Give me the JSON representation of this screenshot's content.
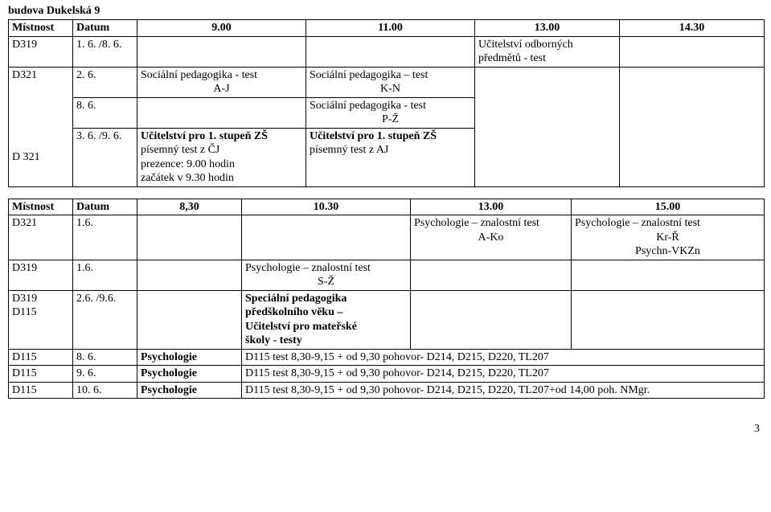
{
  "building": "budova Dukelská 9",
  "table1": {
    "header": {
      "c1": "Místnost",
      "c2": "Datum",
      "c3": "9.00",
      "c4": "11.00",
      "c5": "13.00",
      "c6": "14.30"
    },
    "rows": [
      {
        "c1": "D319",
        "c2": "1. 6. /8. 6.",
        "c3": "",
        "c4": "",
        "c5_l1": "Učitelství odborných",
        "c5_l2": "předmětů - test",
        "c6": ""
      },
      {
        "c1": "D321",
        "c2": "2. 6.",
        "c3_l1": "Sociální pedagogika - test",
        "c3_l2": "A-J",
        "c4_l1": "Sociální pedagogika – test",
        "c4_l2": "K-N"
      },
      {
        "c2": "8. 6.",
        "c3_text": "",
        "c4_l1": "Sociální pedagogika - test",
        "c4_l2": "P-Ž"
      },
      {
        "c1": "D 321",
        "c2": "3. 6. /9. 6.",
        "c3_l1": "Učitelství pro 1. stupeň ZŠ",
        "c3_l2": "písemný test z ČJ",
        "c3_l3": "prezence: 9.00 hodin",
        "c3_l4": "začátek v 9.30 hodin",
        "c4_l1": "Učitelství pro 1. stupeň ZŠ",
        "c4_l2": "písemný test z AJ"
      }
    ]
  },
  "table2": {
    "header": {
      "c1": "Místnost",
      "c2": "Datum",
      "c3": "8,30",
      "c4": "10.30",
      "c5": "13.00",
      "c6": "15.00"
    },
    "rows": [
      {
        "c1": "D321",
        "c2": "1.6.",
        "c5_l1": "Psychologie – znalostní test",
        "c5_l2": "A-Ko",
        "c6_l1": "Psychologie – znalostní test",
        "c6_l2": "Kr-Ř",
        "c6_l3": "Psychn-VKZn"
      },
      {
        "c1": "D319",
        "c2": "1.6.",
        "c4_l1": "Psychologie – znalostní test",
        "c4_l2": "S-Ž"
      },
      {
        "c1_l1": "D319",
        "c1_l2": "D115",
        "c2": "2.6. /9.6.",
        "c4_l1": "Speciální pedagogika",
        "c4_l2": "předškolního věku –",
        "c4_l3": "Učitelství pro mateřské",
        "c4_l4": "školy - testy"
      },
      {
        "c1": "D115",
        "c2": "8. 6.",
        "c3": "Psychologie",
        "rest": "D115 test 8,30-9,15 + od 9,30 pohovor- D214, D215, D220, TL207"
      },
      {
        "c1": "D115",
        "c2": "9. 6.",
        "c3": "Psychologie",
        "rest": "D115 test 8,30-9,15 + od 9,30 pohovor- D214, D215, D220, TL207"
      },
      {
        "c1": "D115",
        "c2": "10. 6.",
        "c3": "Psychologie",
        "rest": "D115 test 8,30-9,15 + od 9,30 pohovor- D214, D215, D220, TL207+od 14,00 poh.  NMgr."
      }
    ]
  },
  "page_number": "3"
}
